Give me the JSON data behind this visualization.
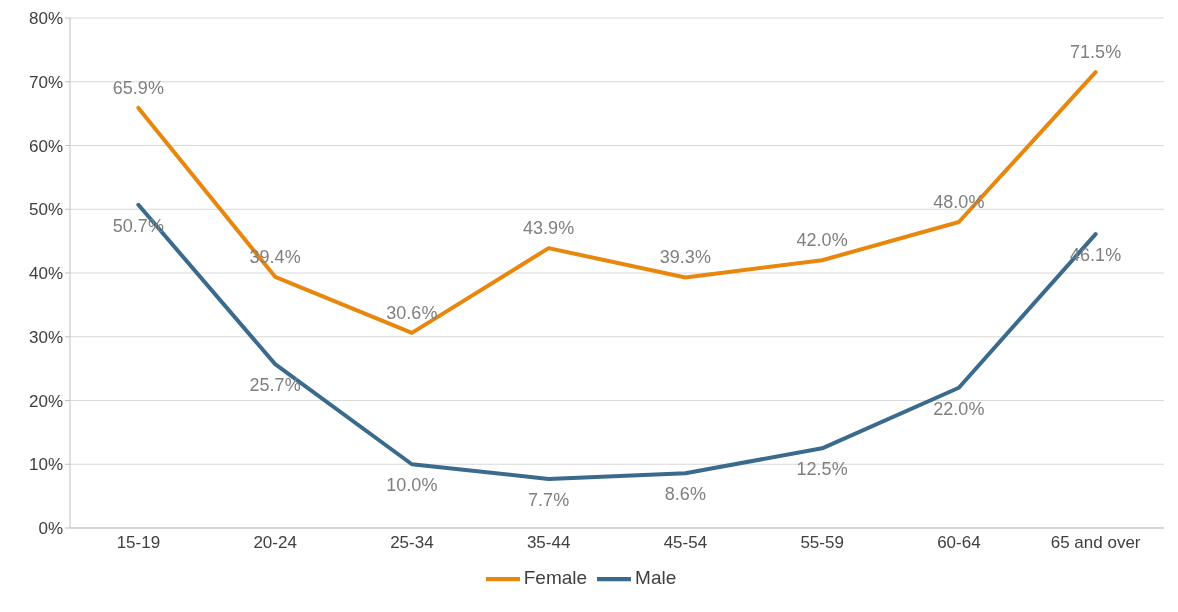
{
  "chart_data": {
    "type": "line",
    "categories": [
      "15-19",
      "20-24",
      "25-34",
      "35-44",
      "45-54",
      "55-59",
      "60-64",
      "65 and over"
    ],
    "series": [
      {
        "name": "Female",
        "color": "#e8870e",
        "values": [
          65.9,
          39.4,
          30.6,
          43.9,
          39.3,
          42.0,
          48.0,
          71.5
        ],
        "value_labels": [
          "65.9%",
          "39.4%",
          "30.6%",
          "43.9%",
          "39.3%",
          "42.0%",
          "48.0%",
          "71.5%"
        ]
      },
      {
        "name": "Male",
        "color": "#3a6a8c",
        "values": [
          50.7,
          25.7,
          10.0,
          7.7,
          8.6,
          12.5,
          22.0,
          46.1
        ],
        "value_labels": [
          "50.7%",
          "25.7%",
          "10.0%",
          "7.7%",
          "8.6%",
          "12.5%",
          "22.0%",
          "46.1%"
        ]
      }
    ],
    "ylim": [
      0,
      80
    ],
    "yticks": [
      {
        "value": 0,
        "label": "0%"
      },
      {
        "value": 10,
        "label": "10%"
      },
      {
        "value": 20,
        "label": "20%"
      },
      {
        "value": 30,
        "label": "30%"
      },
      {
        "value": 40,
        "label": "40%"
      },
      {
        "value": 50,
        "label": "50%"
      },
      {
        "value": 60,
        "label": "60%"
      },
      {
        "value": 70,
        "label": "70%"
      },
      {
        "value": 80,
        "label": "80%"
      }
    ],
    "grid": "y",
    "legend": "bottom",
    "marker": "none",
    "line_style": "solid"
  }
}
